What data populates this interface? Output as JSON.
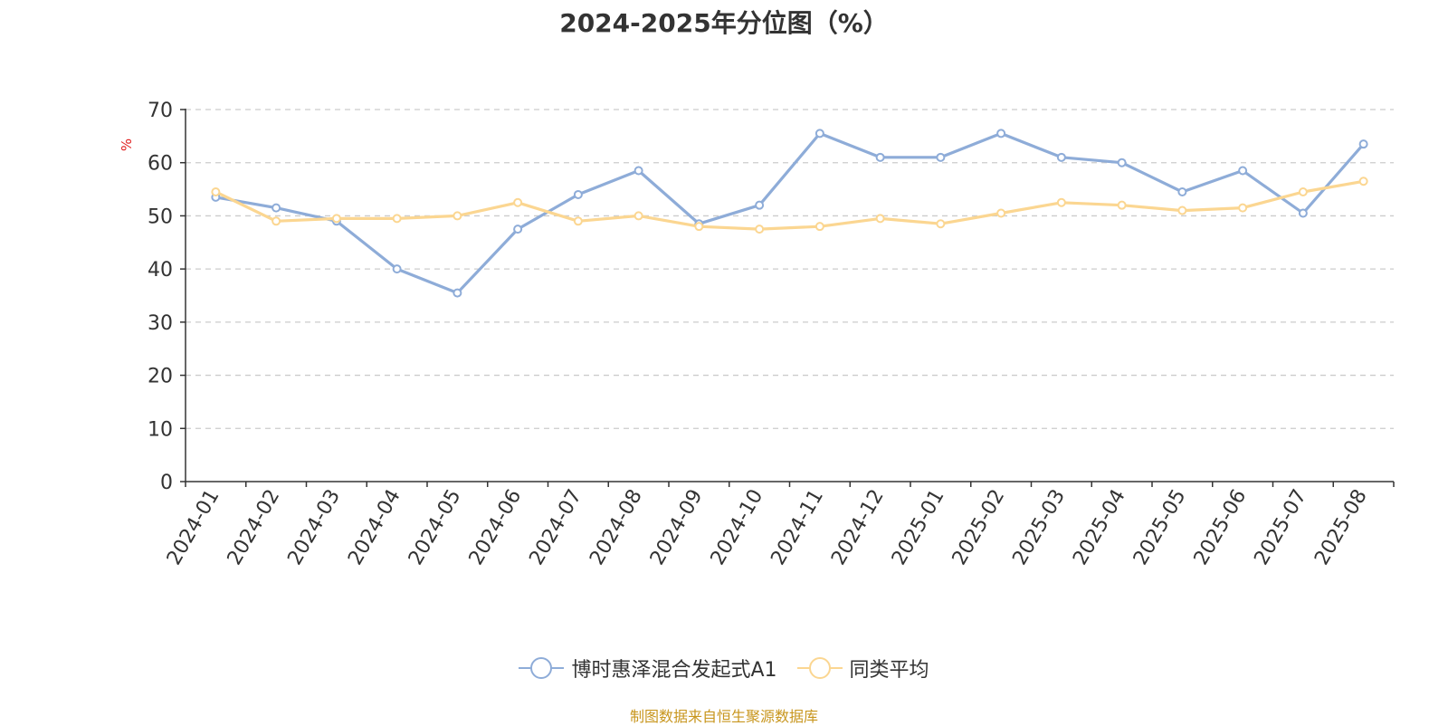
{
  "chart_data": {
    "type": "line",
    "title": "2024-2025年分位图（%）",
    "ylabel": "%",
    "xlabel": "",
    "ylim": [
      0,
      70
    ],
    "yticks": [
      0,
      10,
      20,
      30,
      40,
      50,
      60,
      70
    ],
    "grid": true,
    "legend_position": "bottom",
    "categories": [
      "2024-01",
      "2024-02",
      "2024-03",
      "2024-04",
      "2024-05",
      "2024-06",
      "2024-07",
      "2024-08",
      "2024-09",
      "2024-10",
      "2024-11",
      "2024-12",
      "2025-01",
      "2025-02",
      "2025-03",
      "2025-04",
      "2025-05",
      "2025-06",
      "2025-07",
      "2025-08"
    ],
    "series": [
      {
        "name": "博时惠泽混合发起式A1",
        "color": "#8eacd8",
        "values": [
          53.5,
          51.5,
          49,
          40,
          35.5,
          47.5,
          54,
          58.5,
          48.5,
          52,
          65.5,
          61,
          61,
          65.5,
          61,
          60,
          54.5,
          58.5,
          50.5,
          63.5
        ]
      },
      {
        "name": "同类平均",
        "color": "#fbd691",
        "values": [
          54.5,
          49,
          49.5,
          49.5,
          50,
          52.5,
          49,
          50,
          48,
          47.5,
          48,
          49.5,
          48.5,
          50.5,
          52.5,
          52,
          51,
          51.5,
          54.5,
          56.5
        ]
      }
    ]
  },
  "footer": {
    "source": "制图数据来自恒生聚源数据库"
  }
}
